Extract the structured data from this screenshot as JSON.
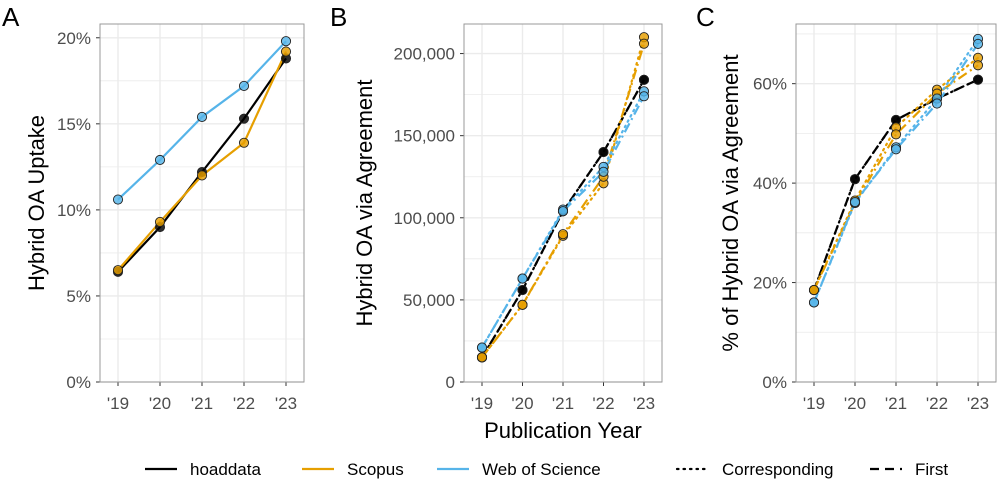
{
  "colors": {
    "hoaddata": "#000000",
    "scopus": "#E69F00",
    "wos": "#56B4E9",
    "grid": "#ebebeb",
    "frame": "#999999"
  },
  "legend": {
    "hoaddata": "hoaddata",
    "scopus": "Scopus",
    "wos": "Web of Science",
    "corresponding": "Corresponding",
    "first": "First"
  },
  "chart_data": [
    {
      "panel": "A",
      "type": "line",
      "ylabel": "Hybrid OA Uptake",
      "xlabel": "",
      "categories": [
        "'19",
        "'20",
        "'21",
        "'22",
        "'23"
      ],
      "ylim": [
        0,
        20.8
      ],
      "yticks": [
        0,
        5,
        10,
        15,
        20
      ],
      "ytick_labels": [
        "0%",
        "5%",
        "10%",
        "15%",
        "20%"
      ],
      "series": [
        {
          "name": "hoaddata",
          "source": "hoaddata",
          "style": "solid",
          "values": [
            6.4,
            9.0,
            12.2,
            15.3,
            18.8
          ]
        },
        {
          "name": "Scopus",
          "source": "scopus",
          "style": "solid",
          "values": [
            6.5,
            9.3,
            12.0,
            13.9,
            19.2
          ]
        },
        {
          "name": "Web of Science",
          "source": "wos",
          "style": "solid",
          "values": [
            10.6,
            12.9,
            15.4,
            17.2,
            19.8
          ]
        }
      ]
    },
    {
      "panel": "B",
      "type": "line",
      "ylabel": "Hybrid OA via Agreement",
      "xlabel": "Publication Year",
      "categories": [
        "'19",
        "'20",
        "'21",
        "'22",
        "'23"
      ],
      "ylim": [
        0,
        218000
      ],
      "yticks": [
        0,
        50000,
        100000,
        150000,
        200000
      ],
      "ytick_labels": [
        "0",
        "50,000",
        "100,000",
        "150,000",
        "200,000"
      ],
      "series": [
        {
          "name": "hoaddata Corresponding",
          "source": "hoaddata",
          "style": "dotted",
          "values": [
            15000,
            56000,
            104000,
            140000,
            184000
          ]
        },
        {
          "name": "hoaddata First",
          "source": "hoaddata",
          "style": "dashed",
          "values": [
            15000,
            56000,
            104000,
            140000,
            184000
          ]
        },
        {
          "name": "Scopus Corresponding",
          "source": "scopus",
          "style": "dotted",
          "values": [
            15000,
            47000,
            89000,
            121000,
            210000
          ]
        },
        {
          "name": "Scopus First",
          "source": "scopus",
          "style": "dashdot",
          "values": [
            15000,
            47000,
            90000,
            125000,
            206000
          ]
        },
        {
          "name": "Web of Science Corresponding",
          "source": "wos",
          "style": "dotted",
          "values": [
            21000,
            63000,
            105000,
            131000,
            177000
          ]
        },
        {
          "name": "Web of Science First",
          "source": "wos",
          "style": "dashdot",
          "values": [
            21000,
            63000,
            104000,
            128000,
            174000
          ]
        }
      ]
    },
    {
      "panel": "C",
      "type": "line",
      "ylabel": "% of Hybrid OA via Agreement",
      "xlabel": "",
      "categories": [
        "'19",
        "'20",
        "'21",
        "'22",
        "'23"
      ],
      "ylim": [
        0,
        72
      ],
      "yticks": [
        0,
        20,
        40,
        60
      ],
      "ytick_labels": [
        "0%",
        "20%",
        "40%",
        "60%"
      ],
      "series": [
        {
          "name": "hoaddata Corresponding",
          "source": "hoaddata",
          "style": "dotted",
          "values": [
            18.5,
            40.8,
            52.7,
            57.0,
            60.8
          ]
        },
        {
          "name": "hoaddata First",
          "source": "hoaddata",
          "style": "dashed",
          "values": [
            18.5,
            40.8,
            52.7,
            57.0,
            60.8
          ]
        },
        {
          "name": "Scopus Corresponding",
          "source": "scopus",
          "style": "dotted",
          "values": [
            18.5,
            36.5,
            51.2,
            58.8,
            65.2
          ]
        },
        {
          "name": "Scopus First",
          "source": "scopus",
          "style": "dashdot",
          "values": [
            18.5,
            36.0,
            49.8,
            58.0,
            63.7
          ]
        },
        {
          "name": "Web of Science Corresponding",
          "source": "wos",
          "style": "dotted",
          "values": [
            16.0,
            36.0,
            47.2,
            57.0,
            69.0
          ]
        },
        {
          "name": "Web of Science First",
          "source": "wos",
          "style": "dashdot",
          "values": [
            16.0,
            36.2,
            46.8,
            56.0,
            68.0
          ]
        }
      ]
    }
  ]
}
